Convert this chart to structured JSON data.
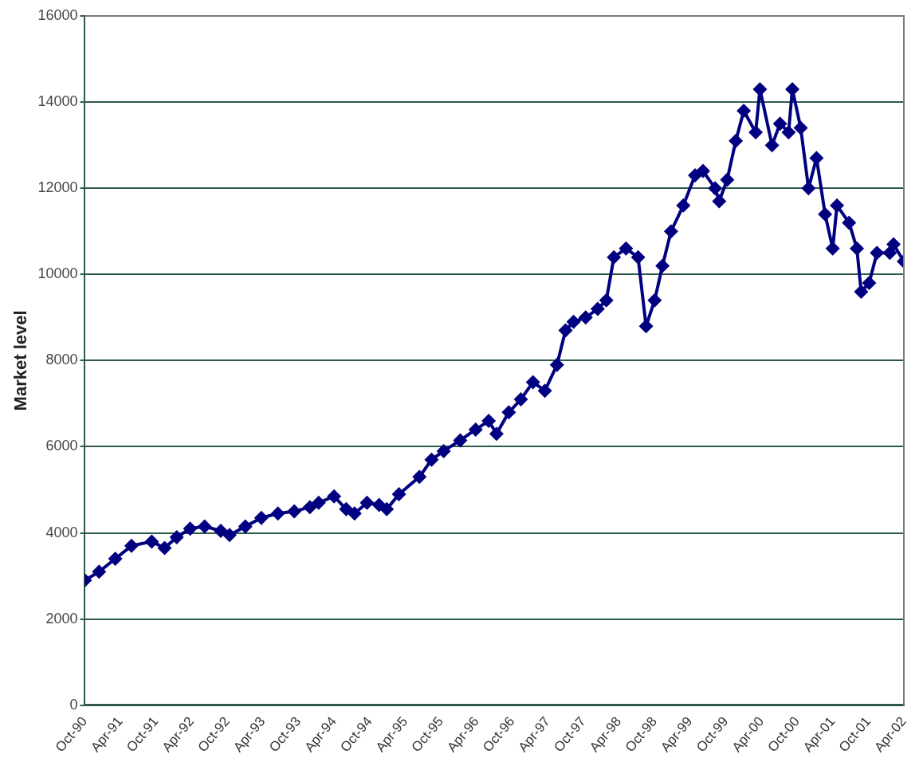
{
  "chart_data": {
    "type": "line",
    "ylabel": "Market level",
    "x": [
      "1990-10-01",
      "1990-12-13",
      "1991-03-06",
      "1991-05-28",
      "1991-09-09",
      "1991-11-14",
      "1992-01-15",
      "1992-03-24",
      "1992-06-06",
      "1992-08-28",
      "1992-10-12",
      "1993-01-01",
      "1993-03-24",
      "1993-06-17",
      "1993-09-09",
      "1993-11-28",
      "1994-01-12",
      "1994-04-01",
      "1994-06-02",
      "1994-07-15",
      "1994-09-17",
      "1994-11-18",
      "1994-12-27",
      "1995-02-28",
      "1995-06-13",
      "1995-08-14",
      "1995-10-15",
      "1996-01-08",
      "1996-03-27",
      "1996-06-02",
      "1996-07-12",
      "1996-09-13",
      "1996-11-14",
      "1997-01-15",
      "1997-03-17",
      "1997-05-18",
      "1997-07-01",
      "1997-08-11",
      "1997-10-12",
      "1997-12-13",
      "1998-01-26",
      "1998-03-06",
      "1998-05-07",
      "1998-07-08",
      "1998-08-18",
      "1998-10-01",
      "1998-11-10",
      "1998-12-24",
      "1999-02-25",
      "1999-04-26",
      "1999-06-06",
      "1999-08-07",
      "1999-08-28",
      "1999-10-08",
      "1999-11-21",
      "2000-01-01",
      "2000-03-02",
      "2000-03-24",
      "2000-05-25",
      "2000-07-05",
      "2000-08-18",
      "2000-09-06",
      "2000-10-19",
      "2000-11-28",
      "2001-01-08",
      "2001-02-21",
      "2001-04-01",
      "2001-04-23",
      "2001-06-24",
      "2001-08-03",
      "2001-08-25",
      "2001-10-05",
      "2001-11-14",
      "2002-01-19",
      "2002-02-07",
      "2002-04-01"
    ],
    "series": [
      {
        "color": "#000080",
        "values": [
          2900,
          3100,
          3400,
          3700,
          3800,
          3650,
          3900,
          4100,
          4150,
          4050,
          3950,
          4150,
          4350,
          4450,
          4500,
          4600,
          4700,
          4850,
          4550,
          4450,
          4700,
          4650,
          4550,
          4900,
          5300,
          5700,
          5900,
          6150,
          6400,
          6600,
          6300,
          6800,
          7100,
          7500,
          7300,
          7900,
          8700,
          8900,
          9000,
          9200,
          9400,
          10400,
          10600,
          10400,
          8800,
          9400,
          10200,
          11000,
          11600,
          12300,
          12400,
          12000,
          11700,
          12200,
          13100,
          13800,
          13300,
          14300,
          13000,
          13500,
          13300,
          14300,
          13400,
          12000,
          12700,
          11400,
          10600,
          11600,
          11200,
          10600,
          9600,
          9800,
          10500,
          10500,
          10700,
          10300
        ]
      }
    ],
    "xlim": [
      "1990-10",
      "2002-04"
    ],
    "xticks": [
      {
        "value": "1990-10",
        "label": "Oct-90"
      },
      {
        "value": "1991-04",
        "label": "Apr-91"
      },
      {
        "value": "1991-10",
        "label": "Oct-91"
      },
      {
        "value": "1992-04",
        "label": "Apr-92"
      },
      {
        "value": "1992-10",
        "label": "Oct-92"
      },
      {
        "value": "1993-04",
        "label": "Apr-93"
      },
      {
        "value": "1993-10",
        "label": "Oct-93"
      },
      {
        "value": "1994-04",
        "label": "Apr-94"
      },
      {
        "value": "1994-10",
        "label": "Oct-94"
      },
      {
        "value": "1995-04",
        "label": "Apr-95"
      },
      {
        "value": "1995-10",
        "label": "Oct-95"
      },
      {
        "value": "1996-04",
        "label": "Apr-96"
      },
      {
        "value": "1996-10",
        "label": "Oct-96"
      },
      {
        "value": "1997-04",
        "label": "Apr-97"
      },
      {
        "value": "1997-10",
        "label": "Oct-97"
      },
      {
        "value": "1998-04",
        "label": "Apr-98"
      },
      {
        "value": "1998-10",
        "label": "Oct-98"
      },
      {
        "value": "1999-04",
        "label": "Apr-99"
      },
      {
        "value": "1999-10",
        "label": "Oct-99"
      },
      {
        "value": "2000-04",
        "label": "Apr-00"
      },
      {
        "value": "2000-10",
        "label": "Oct-00"
      },
      {
        "value": "2001-04",
        "label": "Apr-01"
      },
      {
        "value": "2001-10",
        "label": "Oct-01"
      },
      {
        "value": "2002-04",
        "label": "Apr-02"
      }
    ],
    "ylim": [
      0,
      16000
    ],
    "yticks": [
      0,
      2000,
      4000,
      6000,
      8000,
      10000,
      12000,
      14000,
      16000
    ],
    "grid": "y",
    "legend": false,
    "marker": "diamond",
    "line_style": "solid"
  }
}
